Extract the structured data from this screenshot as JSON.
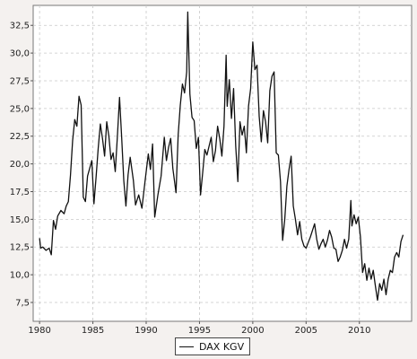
{
  "chart_data": {
    "type": "line",
    "title": "",
    "xlabel": "",
    "ylabel": "",
    "xlim": [
      1979.4,
      2014.9
    ],
    "ylim": [
      5.8,
      34.3
    ],
    "grid": true,
    "legend_position": "bottom-center",
    "x_ticks": [
      1980,
      1985,
      1990,
      1995,
      2000,
      2005,
      2010
    ],
    "x_tick_labels": [
      "1980",
      "1985",
      "1990",
      "1995",
      "2000",
      "2005",
      "2010"
    ],
    "y_ticks": [
      7.5,
      10,
      12.5,
      15,
      17.5,
      20,
      22.5,
      25,
      27.5,
      30,
      32.5
    ],
    "y_tick_labels": [
      "7,5",
      "10,0",
      "12,5",
      "15,0",
      "17,5",
      "20,0",
      "22,5",
      "25,0",
      "27,5",
      "30,0",
      "32,5"
    ],
    "series": [
      {
        "name": "DAX KGV",
        "color": "#111111",
        "points": [
          [
            1980.0,
            13.3
          ],
          [
            1980.1,
            12.4
          ],
          [
            1980.3,
            12.5
          ],
          [
            1980.6,
            12.2
          ],
          [
            1980.9,
            12.4
          ],
          [
            1981.1,
            11.8
          ],
          [
            1981.3,
            14.9
          ],
          [
            1981.5,
            14.1
          ],
          [
            1981.7,
            15.3
          ],
          [
            1982.0,
            15.8
          ],
          [
            1982.3,
            15.5
          ],
          [
            1982.5,
            16.2
          ],
          [
            1982.7,
            16.6
          ],
          [
            1982.9,
            19.0
          ],
          [
            1983.1,
            22.1
          ],
          [
            1983.3,
            24.0
          ],
          [
            1983.5,
            23.4
          ],
          [
            1983.7,
            26.1
          ],
          [
            1983.9,
            25.3
          ],
          [
            1984.1,
            17.0
          ],
          [
            1984.3,
            16.6
          ],
          [
            1984.5,
            18.9
          ],
          [
            1984.7,
            19.6
          ],
          [
            1984.9,
            20.3
          ],
          [
            1985.1,
            16.4
          ],
          [
            1985.3,
            18.8
          ],
          [
            1985.5,
            21.4
          ],
          [
            1985.7,
            23.6
          ],
          [
            1985.9,
            22.3
          ],
          [
            1986.1,
            20.7
          ],
          [
            1986.3,
            23.8
          ],
          [
            1986.5,
            22.5
          ],
          [
            1986.7,
            20.4
          ],
          [
            1986.9,
            21.0
          ],
          [
            1987.1,
            19.3
          ],
          [
            1987.3,
            22.5
          ],
          [
            1987.5,
            26.0
          ],
          [
            1987.7,
            22.4
          ],
          [
            1987.9,
            18.5
          ],
          [
            1988.1,
            16.2
          ],
          [
            1988.3,
            19.0
          ],
          [
            1988.5,
            20.6
          ],
          [
            1988.8,
            18.5
          ],
          [
            1989.0,
            16.3
          ],
          [
            1989.3,
            17.2
          ],
          [
            1989.6,
            16.0
          ],
          [
            1989.9,
            18.5
          ],
          [
            1990.2,
            20.9
          ],
          [
            1990.4,
            19.5
          ],
          [
            1990.6,
            21.8
          ],
          [
            1990.8,
            15.2
          ],
          [
            1991.1,
            17.2
          ],
          [
            1991.4,
            18.9
          ],
          [
            1991.7,
            22.4
          ],
          [
            1991.9,
            20.3
          ],
          [
            1992.1,
            21.5
          ],
          [
            1992.3,
            22.3
          ],
          [
            1992.5,
            19.6
          ],
          [
            1992.8,
            17.4
          ],
          [
            1993.0,
            22.6
          ],
          [
            1993.2,
            25.3
          ],
          [
            1993.4,
            27.2
          ],
          [
            1993.6,
            26.4
          ],
          [
            1993.8,
            28.3
          ],
          [
            1993.9,
            33.7
          ],
          [
            1994.1,
            26.3
          ],
          [
            1994.3,
            24.2
          ],
          [
            1994.5,
            23.9
          ],
          [
            1994.7,
            21.4
          ],
          [
            1994.9,
            22.4
          ],
          [
            1995.1,
            17.2
          ],
          [
            1995.3,
            19.2
          ],
          [
            1995.5,
            21.3
          ],
          [
            1995.7,
            20.8
          ],
          [
            1995.9,
            21.6
          ],
          [
            1996.1,
            22.4
          ],
          [
            1996.3,
            20.2
          ],
          [
            1996.5,
            21.2
          ],
          [
            1996.7,
            23.4
          ],
          [
            1996.9,
            22.3
          ],
          [
            1997.1,
            20.7
          ],
          [
            1997.3,
            23.4
          ],
          [
            1997.5,
            29.8
          ],
          [
            1997.6,
            25.2
          ],
          [
            1997.8,
            27.6
          ],
          [
            1998.0,
            24.1
          ],
          [
            1998.2,
            26.8
          ],
          [
            1998.4,
            21.6
          ],
          [
            1998.6,
            18.4
          ],
          [
            1998.8,
            23.8
          ],
          [
            1999.0,
            22.6
          ],
          [
            1999.2,
            23.4
          ],
          [
            1999.4,
            21.0
          ],
          [
            1999.6,
            25.2
          ],
          [
            1999.8,
            26.8
          ],
          [
            2000.0,
            31.0
          ],
          [
            2000.2,
            28.5
          ],
          [
            2000.4,
            28.9
          ],
          [
            2000.6,
            24.3
          ],
          [
            2000.8,
            22.0
          ],
          [
            2001.0,
            24.8
          ],
          [
            2001.2,
            23.8
          ],
          [
            2001.4,
            21.9
          ],
          [
            2001.6,
            26.6
          ],
          [
            2001.8,
            27.9
          ],
          [
            2002.0,
            28.3
          ],
          [
            2002.2,
            21.0
          ],
          [
            2002.4,
            20.8
          ],
          [
            2002.6,
            18.4
          ],
          [
            2002.8,
            13.1
          ],
          [
            2003.0,
            15.0
          ],
          [
            2003.2,
            18.0
          ],
          [
            2003.4,
            19.5
          ],
          [
            2003.6,
            20.7
          ],
          [
            2003.8,
            16.2
          ],
          [
            2004.0,
            15.0
          ],
          [
            2004.2,
            13.6
          ],
          [
            2004.4,
            14.8
          ],
          [
            2004.6,
            13.2
          ],
          [
            2004.8,
            12.6
          ],
          [
            2005.0,
            12.4
          ],
          [
            2005.2,
            12.9
          ],
          [
            2005.4,
            13.4
          ],
          [
            2005.6,
            14.0
          ],
          [
            2005.8,
            14.6
          ],
          [
            2006.0,
            13.2
          ],
          [
            2006.2,
            12.3
          ],
          [
            2006.4,
            12.8
          ],
          [
            2006.6,
            13.2
          ],
          [
            2006.8,
            12.5
          ],
          [
            2007.0,
            13.1
          ],
          [
            2007.2,
            14.0
          ],
          [
            2007.4,
            13.4
          ],
          [
            2007.6,
            12.4
          ],
          [
            2007.8,
            12.3
          ],
          [
            2008.0,
            11.2
          ],
          [
            2008.2,
            11.6
          ],
          [
            2008.4,
            12.2
          ],
          [
            2008.6,
            13.2
          ],
          [
            2008.8,
            12.4
          ],
          [
            2009.0,
            13.2
          ],
          [
            2009.2,
            16.7
          ],
          [
            2009.3,
            14.4
          ],
          [
            2009.5,
            15.4
          ],
          [
            2009.7,
            14.6
          ],
          [
            2009.9,
            15.2
          ],
          [
            2010.1,
            13.4
          ],
          [
            2010.3,
            10.2
          ],
          [
            2010.5,
            11.0
          ],
          [
            2010.7,
            9.5
          ],
          [
            2010.9,
            10.6
          ],
          [
            2011.1,
            9.6
          ],
          [
            2011.3,
            10.4
          ],
          [
            2011.5,
            9.0
          ],
          [
            2011.7,
            7.7
          ],
          [
            2011.9,
            9.2
          ],
          [
            2012.1,
            8.6
          ],
          [
            2012.3,
            9.6
          ],
          [
            2012.5,
            8.2
          ],
          [
            2012.7,
            9.6
          ],
          [
            2012.9,
            10.4
          ],
          [
            2013.1,
            10.2
          ],
          [
            2013.3,
            11.6
          ],
          [
            2013.5,
            12.0
          ],
          [
            2013.7,
            11.6
          ],
          [
            2013.9,
            13.0
          ],
          [
            2014.1,
            13.6
          ]
        ]
      }
    ]
  }
}
